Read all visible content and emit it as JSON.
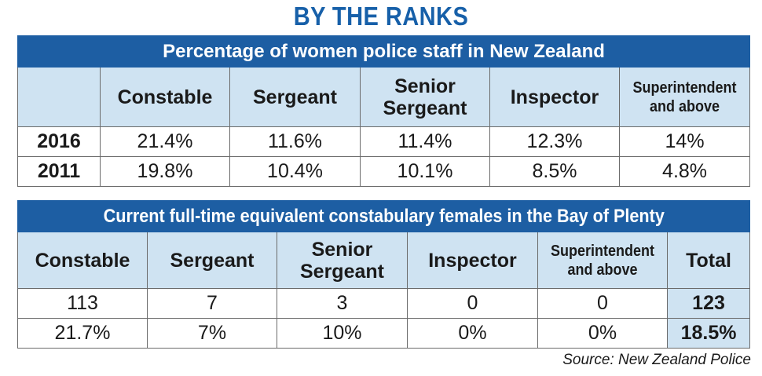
{
  "title": "BY THE RANKS",
  "source": "Source: New Zealand Police",
  "colors": {
    "title": "#1760a9",
    "band": "#1d5ea3",
    "header_fill": "#cfe3f2",
    "border": "#6b6b6b"
  },
  "chart_data": [
    {
      "type": "table",
      "title": "Percentage of women police staff in New Zealand",
      "columns": [
        "Constable",
        "Sergeant",
        "Senior Sergeant",
        "Inspector",
        "Superintendent and above"
      ],
      "rows": [
        {
          "label": "2016",
          "values": [
            "21.4%",
            "11.6%",
            "11.4%",
            "12.3%",
            "14%"
          ]
        },
        {
          "label": "2011",
          "values": [
            "19.8%",
            "10.4%",
            "10.1%",
            "8.5%",
            "4.8%"
          ]
        }
      ]
    },
    {
      "type": "table",
      "title": "Current full-time equivalent constabulary females in the Bay of Plenty",
      "columns": [
        "Constable",
        "Sergeant",
        "Senior Sergeant",
        "Inspector",
        "Superintendent and above",
        "Total"
      ],
      "rows": [
        {
          "values": [
            "113",
            "7",
            "3",
            "0",
            "0",
            "123"
          ]
        },
        {
          "values": [
            "21.7%",
            "7%",
            "10%",
            "0%",
            "0%",
            "18.5%"
          ]
        }
      ]
    }
  ]
}
